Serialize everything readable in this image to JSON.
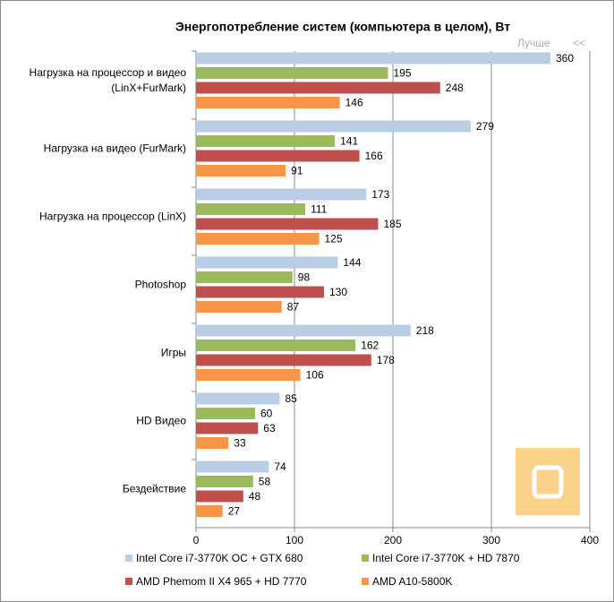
{
  "chart_data": {
    "type": "bar",
    "orientation": "horizontal",
    "title": "Энергопотребление систем (компьютера в целом), Вт",
    "annotation": "Лучше",
    "annotation_arrow": "<<",
    "categories": [
      "Нагрузка на процессор  и видео (LinX+FurMark)",
      "Нагрузка на видео (FurMark)",
      "Нагрузка на процессор (LinX)",
      "Photoshop",
      "Игры",
      "HD Видео",
      "Бездействие"
    ],
    "series": [
      {
        "name": "Intel Core i7-3770K OC + GTX 680",
        "color": "#b9cde5",
        "values": [
          360,
          279,
          173,
          144,
          218,
          85,
          74
        ]
      },
      {
        "name": "Intel Core i7-3770K + HD 7870",
        "color": "#9bbb59",
        "values": [
          195,
          141,
          111,
          98,
          162,
          60,
          58
        ]
      },
      {
        "name": "AMD Phemom II X4 965 + HD 7770",
        "color": "#c0504d",
        "values": [
          248,
          166,
          185,
          130,
          178,
          63,
          48
        ]
      },
      {
        "name": "AMD A10-5800K",
        "color": "#f79646",
        "values": [
          146,
          91,
          125,
          87,
          106,
          33,
          27
        ]
      }
    ],
    "xlim": [
      0,
      400
    ],
    "xticks": [
      0,
      100,
      200,
      300,
      400
    ],
    "grid": true
  }
}
